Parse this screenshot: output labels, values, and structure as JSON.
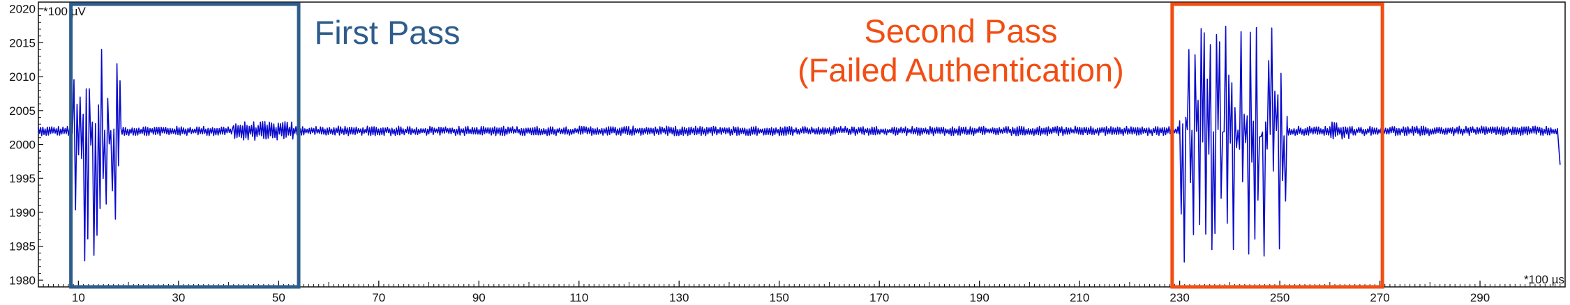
{
  "chart_data": {
    "type": "line",
    "xunit": "*100 µs",
    "yunit": "*100 µV",
    "xlim": [
      2,
      307
    ],
    "ylim": [
      1979,
      2021
    ],
    "x_ticks": [
      10,
      30,
      50,
      70,
      90,
      110,
      130,
      150,
      170,
      190,
      210,
      230,
      250,
      270,
      290
    ],
    "y_ticks": [
      1980,
      1985,
      1990,
      1995,
      2000,
      2005,
      2010,
      2015,
      2020
    ],
    "grid": false,
    "baseline": 2002,
    "segments": [
      {
        "x_start": 2,
        "x_end": 8.5,
        "level": 2002,
        "amplitude": 0.7,
        "kind": "idle"
      },
      {
        "x_start": 8.5,
        "x_end": 18.5,
        "high": 2016,
        "low": 1981,
        "kind": "burst"
      },
      {
        "x_start": 18.5,
        "x_end": 41,
        "level": 2002,
        "amplitude": 0.7,
        "kind": "idle"
      },
      {
        "x_start": 41,
        "x_end": 53,
        "level": 2002,
        "amplitude": 1.4,
        "kind": "noise"
      },
      {
        "x_start": 53,
        "x_end": 230,
        "level": 2002,
        "amplitude": 0.7,
        "kind": "idle"
      },
      {
        "x_start": 230,
        "x_end": 251.5,
        "high": 2018,
        "low": 1981,
        "kind": "burst"
      },
      {
        "x_start": 251.5,
        "x_end": 260,
        "level": 2002,
        "amplitude": 0.7,
        "kind": "idle"
      },
      {
        "x_start": 260,
        "x_end": 264,
        "level": 2002,
        "amplitude": 1.4,
        "kind": "noise"
      },
      {
        "x_start": 264,
        "x_end": 305.5,
        "level": 2002,
        "amplitude": 0.7,
        "kind": "idle"
      },
      {
        "x_start": 305.5,
        "x_end": 306,
        "level": 1997,
        "amplitude": 0,
        "kind": "drop"
      }
    ],
    "annotations": [
      {
        "lines": [
          "First Pass"
        ],
        "x_range": [
          8.5,
          54
        ],
        "y_range": [
          1979,
          2021
        ],
        "color": "#2E5D8C"
      },
      {
        "lines": [
          "Second Pass",
          "(Failed Authentication)"
        ],
        "x_range": [
          228.5,
          270.5
        ],
        "y_range": [
          1979,
          2021
        ],
        "color": "#F24D12"
      }
    ]
  },
  "colors": {
    "signal": "#0A0ACD",
    "axis": "#111111",
    "first_pass": "#2E5D8C",
    "second_pass": "#F24D12",
    "background": "#FFFFFF"
  }
}
